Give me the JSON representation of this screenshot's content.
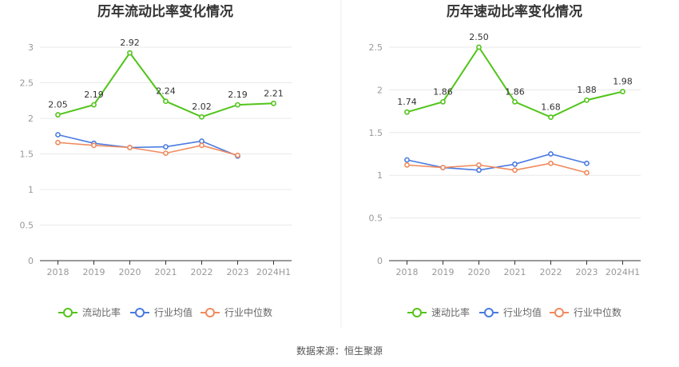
{
  "source_text": "数据来源：恒生聚源",
  "colors": {
    "main": "#52c41a",
    "avg": "#4a7be0",
    "median": "#f08a5d",
    "grid": "#e8e8e8",
    "axis": "#333333"
  },
  "chart_data": [
    {
      "type": "line",
      "title": "历年流动比率变化情况",
      "categories": [
        "2018",
        "2019",
        "2020",
        "2021",
        "2022",
        "2023",
        "2024H1"
      ],
      "ylim": [
        0,
        3
      ],
      "yticks": [
        "0",
        "0.5",
        "1",
        "1.5",
        "2",
        "2.5",
        "3"
      ],
      "ytick_values": [
        0,
        0.5,
        1,
        1.5,
        2,
        2.5,
        3
      ],
      "grid": true,
      "legend_position": "bottom",
      "series": [
        {
          "name": "流动比率",
          "values": [
            2.05,
            2.19,
            2.92,
            2.24,
            2.02,
            2.19,
            2.21
          ],
          "labels": [
            "2.05",
            "2.19",
            "2.92",
            "2.24",
            "2.02",
            "2.19",
            "2.21"
          ]
        },
        {
          "name": "行业均值",
          "values": [
            1.77,
            1.65,
            1.59,
            1.6,
            1.68,
            1.47,
            null
          ]
        },
        {
          "name": "行业中位数",
          "values": [
            1.66,
            1.62,
            1.59,
            1.51,
            1.62,
            1.48,
            null
          ]
        }
      ]
    },
    {
      "type": "line",
      "title": "历年速动比率变化情况",
      "categories": [
        "2018",
        "2019",
        "2020",
        "2021",
        "2022",
        "2023",
        "2024H1"
      ],
      "ylim": [
        0,
        2.5
      ],
      "yticks": [
        "0",
        "0.5",
        "1",
        "1.5",
        "2",
        "2.5"
      ],
      "ytick_values": [
        0,
        0.5,
        1,
        1.5,
        2,
        2.5
      ],
      "grid": true,
      "legend_position": "bottom",
      "series": [
        {
          "name": "速动比率",
          "values": [
            1.74,
            1.86,
            2.5,
            1.86,
            1.68,
            1.88,
            1.98
          ],
          "labels": [
            "1.74",
            "1.86",
            "2.50",
            "1.86",
            "1.68",
            "1.88",
            "1.98"
          ]
        },
        {
          "name": "行业均值",
          "values": [
            1.18,
            1.09,
            1.06,
            1.13,
            1.25,
            1.14,
            null
          ]
        },
        {
          "name": "行业中位数",
          "values": [
            1.12,
            1.09,
            1.12,
            1.06,
            1.14,
            1.03,
            null
          ]
        }
      ]
    }
  ]
}
